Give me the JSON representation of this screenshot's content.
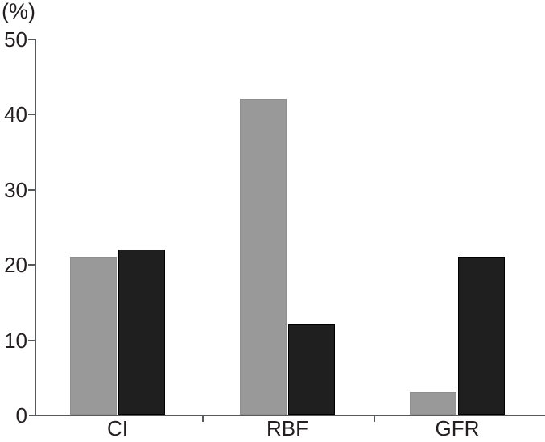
{
  "chart_data": {
    "type": "bar",
    "title": "",
    "unit_label": "(%)",
    "xlabel": "",
    "ylabel": "(%)",
    "categories": [
      "CI",
      "RBF",
      "GFR"
    ],
    "series": [
      {
        "name": "gray",
        "color": "#999999",
        "border_color": "#8f8f8f",
        "values": [
          21,
          42,
          3
        ]
      },
      {
        "name": "black",
        "color": "#1f1f1f",
        "border_color": "#000000",
        "values": [
          22,
          12,
          21
        ]
      }
    ],
    "ylim": [
      0,
      50
    ],
    "ytick_step": 10,
    "yticks": [
      0,
      10,
      20,
      30,
      40,
      50
    ],
    "grid": false,
    "legend_position": "none"
  },
  "colors": {
    "axis": "#58595b",
    "text": "#231f20",
    "background": "#ffffff"
  }
}
